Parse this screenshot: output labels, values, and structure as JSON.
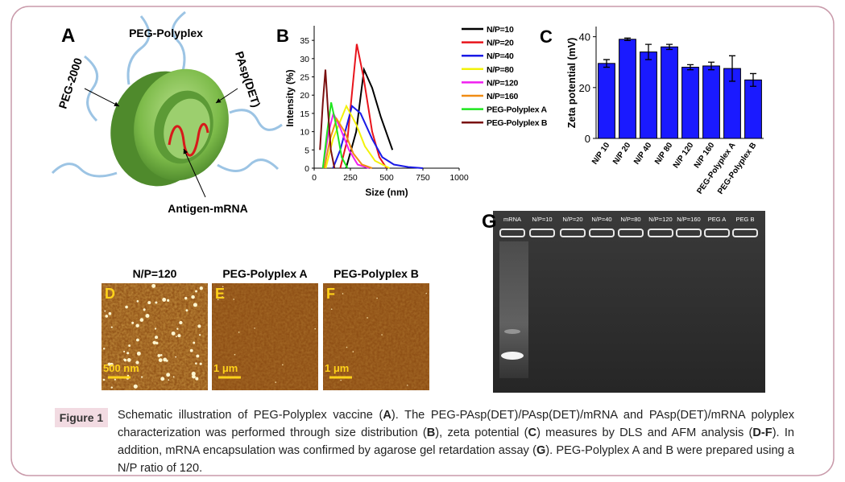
{
  "figure_label": "Figure 1",
  "caption": [
    {
      "text": "Schematic illustration of PEG-Polyplex vaccine (",
      "bold": false
    },
    {
      "text": "A",
      "bold": true
    },
    {
      "text": "). The PEG-PAsp(DET)/PAsp(DET)/mRNA and PAsp(DET)/mRNA polyplex characterization was performed through size distribution (",
      "bold": false
    },
    {
      "text": "B",
      "bold": true
    },
    {
      "text": "), zeta potential (",
      "bold": false
    },
    {
      "text": "C",
      "bold": true
    },
    {
      "text": ") measures by DLS and AFM analysis (",
      "bold": false
    },
    {
      "text": "D-F",
      "bold": true
    },
    {
      "text": "). In addition, mRNA encapsulation was confirmed by agarose gel retardation assay (",
      "bold": false
    },
    {
      "text": "G",
      "bold": true
    },
    {
      "text": "). PEG-Polyplex A and B were prepared using a N/P ratio of 120.",
      "bold": false
    }
  ],
  "panel_a": {
    "letter": "A",
    "title": "PEG-Polyplex",
    "labels": [
      "PEG-2000",
      "PAsp(DET)",
      "Antigen-mRNA"
    ]
  },
  "chart_data": [
    {
      "type": "line",
      "letter": "B",
      "xlabel": "Size (nm)",
      "ylabel": "Intensity (%)",
      "xlim": [
        0,
        1000
      ],
      "xticks": [
        0,
        250,
        500,
        750,
        1000
      ],
      "ylim": [
        0,
        39
      ],
      "yticks": [
        0,
        5,
        10,
        15,
        20,
        25,
        30,
        35
      ],
      "series": [
        {
          "name": "N/P=10",
          "color": "#000000",
          "x": [
            220,
            290,
            344,
            400,
            460,
            540
          ],
          "values": [
            0,
            10,
            27,
            22,
            14,
            5
          ]
        },
        {
          "name": "N/P=20",
          "color": "#e8141c",
          "x": [
            180,
            230,
            294,
            340,
            400,
            450,
            500
          ],
          "values": [
            0,
            8,
            34,
            25,
            10,
            3,
            0
          ]
        },
        {
          "name": "N/P=40",
          "color": "#1a1ae6",
          "x": [
            130,
            180,
            261,
            320,
            400,
            470,
            550,
            650,
            750
          ],
          "values": [
            0,
            5,
            17,
            15,
            8,
            3,
            1,
            0.3,
            0
          ]
        },
        {
          "name": "N/P=80",
          "color": "#f2f20a",
          "x": [
            80,
            130,
            222,
            290,
            350,
            420,
            520
          ],
          "values": [
            0,
            8,
            17,
            12,
            6,
            2,
            0
          ]
        },
        {
          "name": "N/P=120",
          "color": "#f01ef0",
          "x": [
            60,
            100,
            133,
            180,
            240,
            300,
            380
          ],
          "values": [
            0,
            10,
            15,
            11,
            5,
            1,
            0
          ]
        },
        {
          "name": "N/P=160",
          "color": "#f08c14",
          "x": [
            70,
            110,
            155,
            210,
            270,
            330,
            400
          ],
          "values": [
            0,
            8,
            13.5,
            10,
            4,
            1,
            0
          ]
        },
        {
          "name": "PEG-Polyplex A",
          "color": "#1ee61e",
          "x": [
            60,
            90,
            117,
            150,
            190,
            230
          ],
          "values": [
            0,
            10,
            18,
            12,
            3,
            0
          ]
        },
        {
          "name": "PEG-Polyplex B",
          "color": "#7a1010",
          "x": [
            40,
            60,
            78,
            95,
            115,
            140
          ],
          "values": [
            5,
            18,
            27,
            16,
            5,
            0
          ]
        }
      ]
    },
    {
      "type": "bar",
      "letter": "C",
      "ylabel": "Zeta potential (mV)",
      "categories": [
        "N/P 10",
        "N/P 20",
        "N/P 40",
        "N/P 80",
        "N/P 120",
        "N/P 160",
        "PEG-Polyplex A",
        "PEG-Polyplex B"
      ],
      "values": [
        29.5,
        39,
        34,
        36,
        28,
        28.5,
        27.5,
        23
      ],
      "errors": [
        1.5,
        0.5,
        3,
        1,
        1,
        1.5,
        5,
        2.5
      ],
      "color": "#1a1aff",
      "ylim": [
        0,
        44
      ],
      "yticks": [
        0,
        20,
        40
      ]
    }
  ],
  "afm": {
    "panels": [
      {
        "letter": "D",
        "title": "N/P=120",
        "scale": "500 nm"
      },
      {
        "letter": "E",
        "title": "PEG-Polyplex A",
        "scale": "1 μm"
      },
      {
        "letter": "F",
        "title": "PEG-Polyplex B",
        "scale": "1 μm"
      }
    ]
  },
  "gel": {
    "letter": "G",
    "lanes": [
      "mRNA",
      "N/P=10",
      "N/P=20",
      "N/P=40",
      "N/P=80",
      "N/P=120",
      "N/P=160",
      "PEG A",
      "PEG B"
    ]
  }
}
